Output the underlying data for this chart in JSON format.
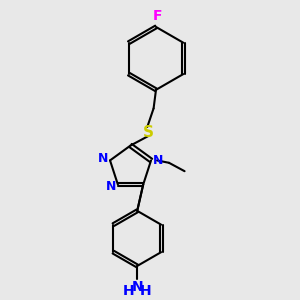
{
  "bg_color": "#e8e8e8",
  "bond_color": "#000000",
  "N_color": "#0000ff",
  "S_color": "#cccc00",
  "F_color": "#ff00ff",
  "line_width": 1.5,
  "figsize": [
    3.0,
    3.0
  ],
  "dpi": 100,
  "xlim": [
    0,
    10
  ],
  "ylim": [
    0,
    10
  ],
  "font_size_atom": 9,
  "font_size_nh2": 10
}
